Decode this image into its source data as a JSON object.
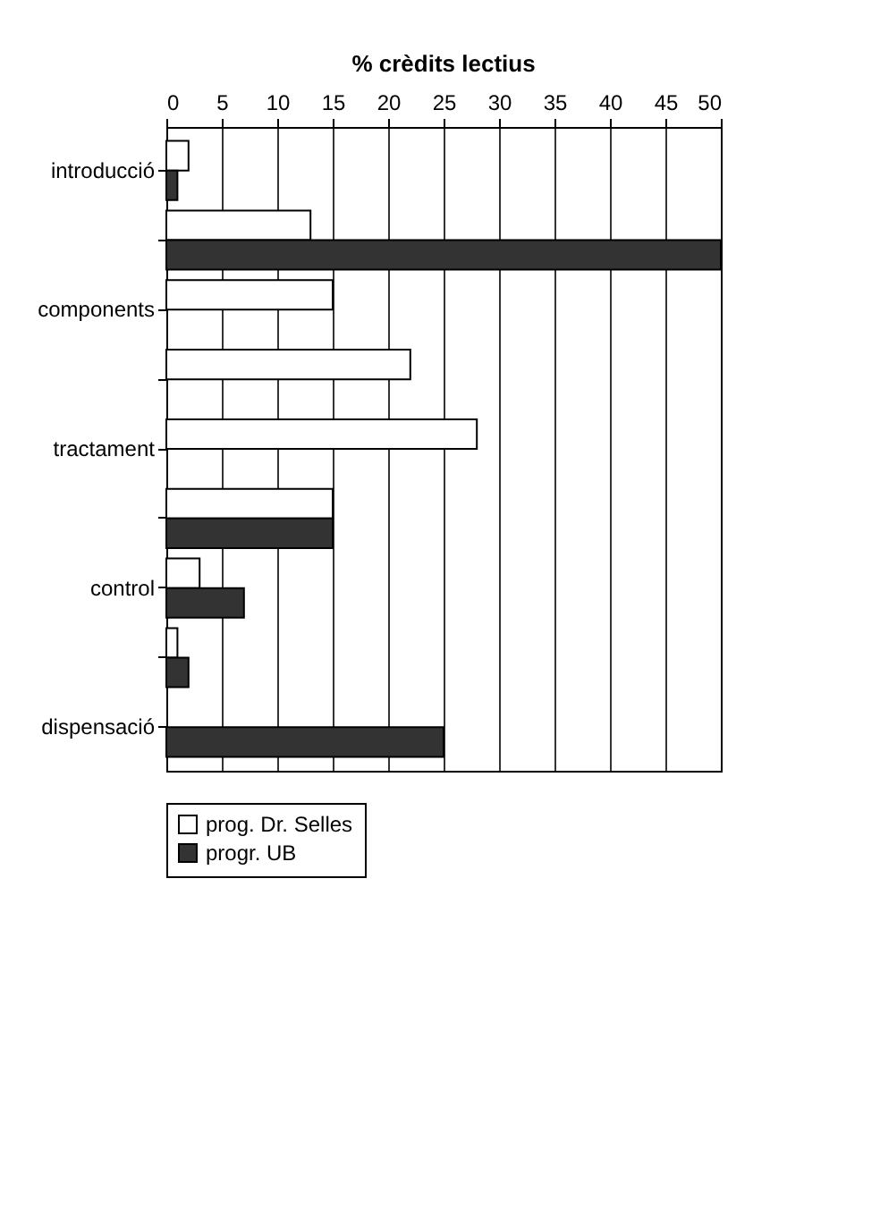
{
  "chart_data": {
    "type": "bar",
    "orientation": "horizontal",
    "title": "% crèdits lectius",
    "categories": [
      "introducció",
      null,
      "components",
      null,
      "tractament",
      null,
      "control",
      null,
      "dispensació"
    ],
    "series": [
      {
        "name": "prog. Dr. Selles",
        "color": "#ffffff",
        "values": [
          2,
          13,
          15,
          22,
          28,
          15,
          3,
          1,
          0
        ]
      },
      {
        "name": "progr. UB",
        "color": "#333333",
        "values": [
          1,
          50,
          0,
          0,
          0,
          15,
          7,
          2,
          25
        ]
      }
    ],
    "xlim": [
      0,
      50
    ],
    "xticks": [
      0,
      5,
      10,
      15,
      20,
      25,
      30,
      35,
      40,
      45,
      50
    ],
    "grid": "x",
    "legend": "bottom"
  }
}
